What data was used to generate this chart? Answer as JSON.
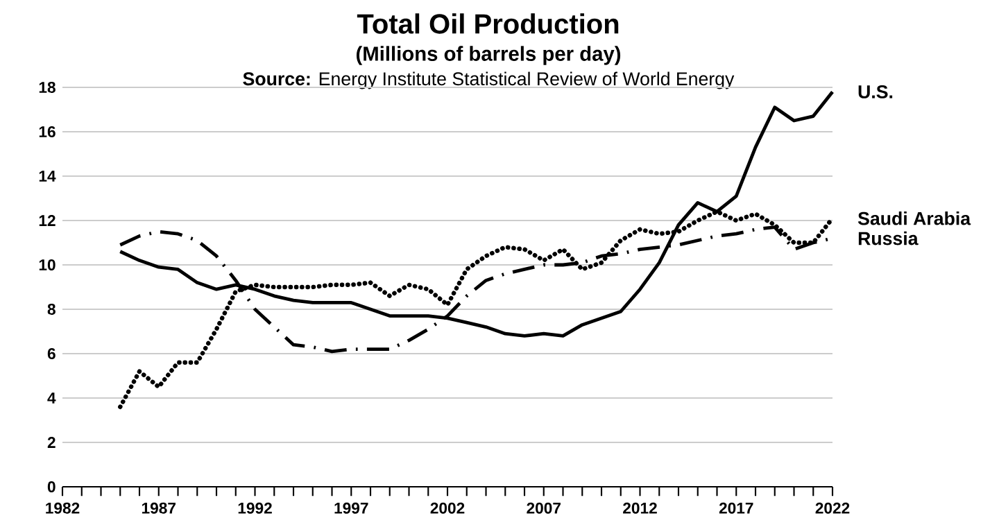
{
  "chart_data": {
    "type": "line",
    "title": "Total Oil Production",
    "subtitle": "(Millions of barrels per day)",
    "annotations": [
      "**Source:** Energy Institute Statistical Review of World Energy"
    ],
    "x": [
      1985,
      1986,
      1987,
      1988,
      1989,
      1990,
      1991,
      1992,
      1993,
      1994,
      1995,
      1996,
      1997,
      1998,
      1999,
      2000,
      2001,
      2002,
      2003,
      2004,
      2005,
      2006,
      2007,
      2008,
      2009,
      2010,
      2011,
      2012,
      2013,
      2014,
      2015,
      2016,
      2017,
      2018,
      2019,
      2020,
      2021,
      2022
    ],
    "series": [
      {
        "name": "U.S.",
        "color": "#000000",
        "line_style": "solid",
        "values": [
          10.6,
          10.2,
          9.9,
          9.8,
          9.2,
          8.9,
          9.1,
          8.9,
          8.6,
          8.4,
          8.3,
          8.3,
          8.3,
          8.0,
          7.7,
          7.7,
          7.7,
          7.6,
          7.4,
          7.2,
          6.9,
          6.8,
          6.9,
          6.8,
          7.3,
          7.6,
          7.9,
          8.9,
          10.1,
          11.8,
          12.8,
          12.4,
          13.1,
          15.3,
          17.1,
          16.5,
          16.7,
          17.8
        ]
      },
      {
        "name": "Saudi Arabia",
        "color": "#000000",
        "line_style": "dotted",
        "values": [
          3.6,
          5.2,
          4.5,
          5.6,
          5.6,
          7.1,
          8.8,
          9.1,
          9.0,
          9.0,
          9.0,
          9.1,
          9.1,
          9.2,
          8.6,
          9.1,
          8.9,
          8.2,
          9.8,
          10.4,
          10.8,
          10.7,
          10.2,
          10.7,
          9.8,
          10.1,
          11.1,
          11.6,
          11.4,
          11.5,
          12.0,
          12.4,
          12.0,
          12.3,
          11.8,
          11.0,
          11.0,
          12.1
        ]
      },
      {
        "name": "Russia",
        "color": "#000000",
        "line_style": "dashed",
        "values": [
          10.9,
          11.3,
          11.5,
          11.4,
          11.1,
          10.4,
          9.3,
          8.0,
          7.2,
          6.4,
          6.3,
          6.1,
          6.2,
          6.2,
          6.2,
          6.6,
          7.1,
          7.7,
          8.6,
          9.3,
          9.6,
          9.8,
          10.0,
          10.0,
          10.1,
          10.4,
          10.5,
          10.7,
          10.8,
          10.9,
          11.1,
          11.3,
          11.4,
          11.6,
          11.7,
          10.7,
          11.0,
          11.2
        ]
      }
    ],
    "xlim": [
      1982,
      2022
    ],
    "xticks": [
      1982,
      1987,
      1992,
      1997,
      2002,
      2007,
      2012,
      2017,
      2022
    ],
    "ylim": [
      0,
      18
    ],
    "yticks": [
      0,
      2,
      4,
      6,
      8,
      10,
      12,
      14,
      16,
      18
    ],
    "grid": "y"
  }
}
